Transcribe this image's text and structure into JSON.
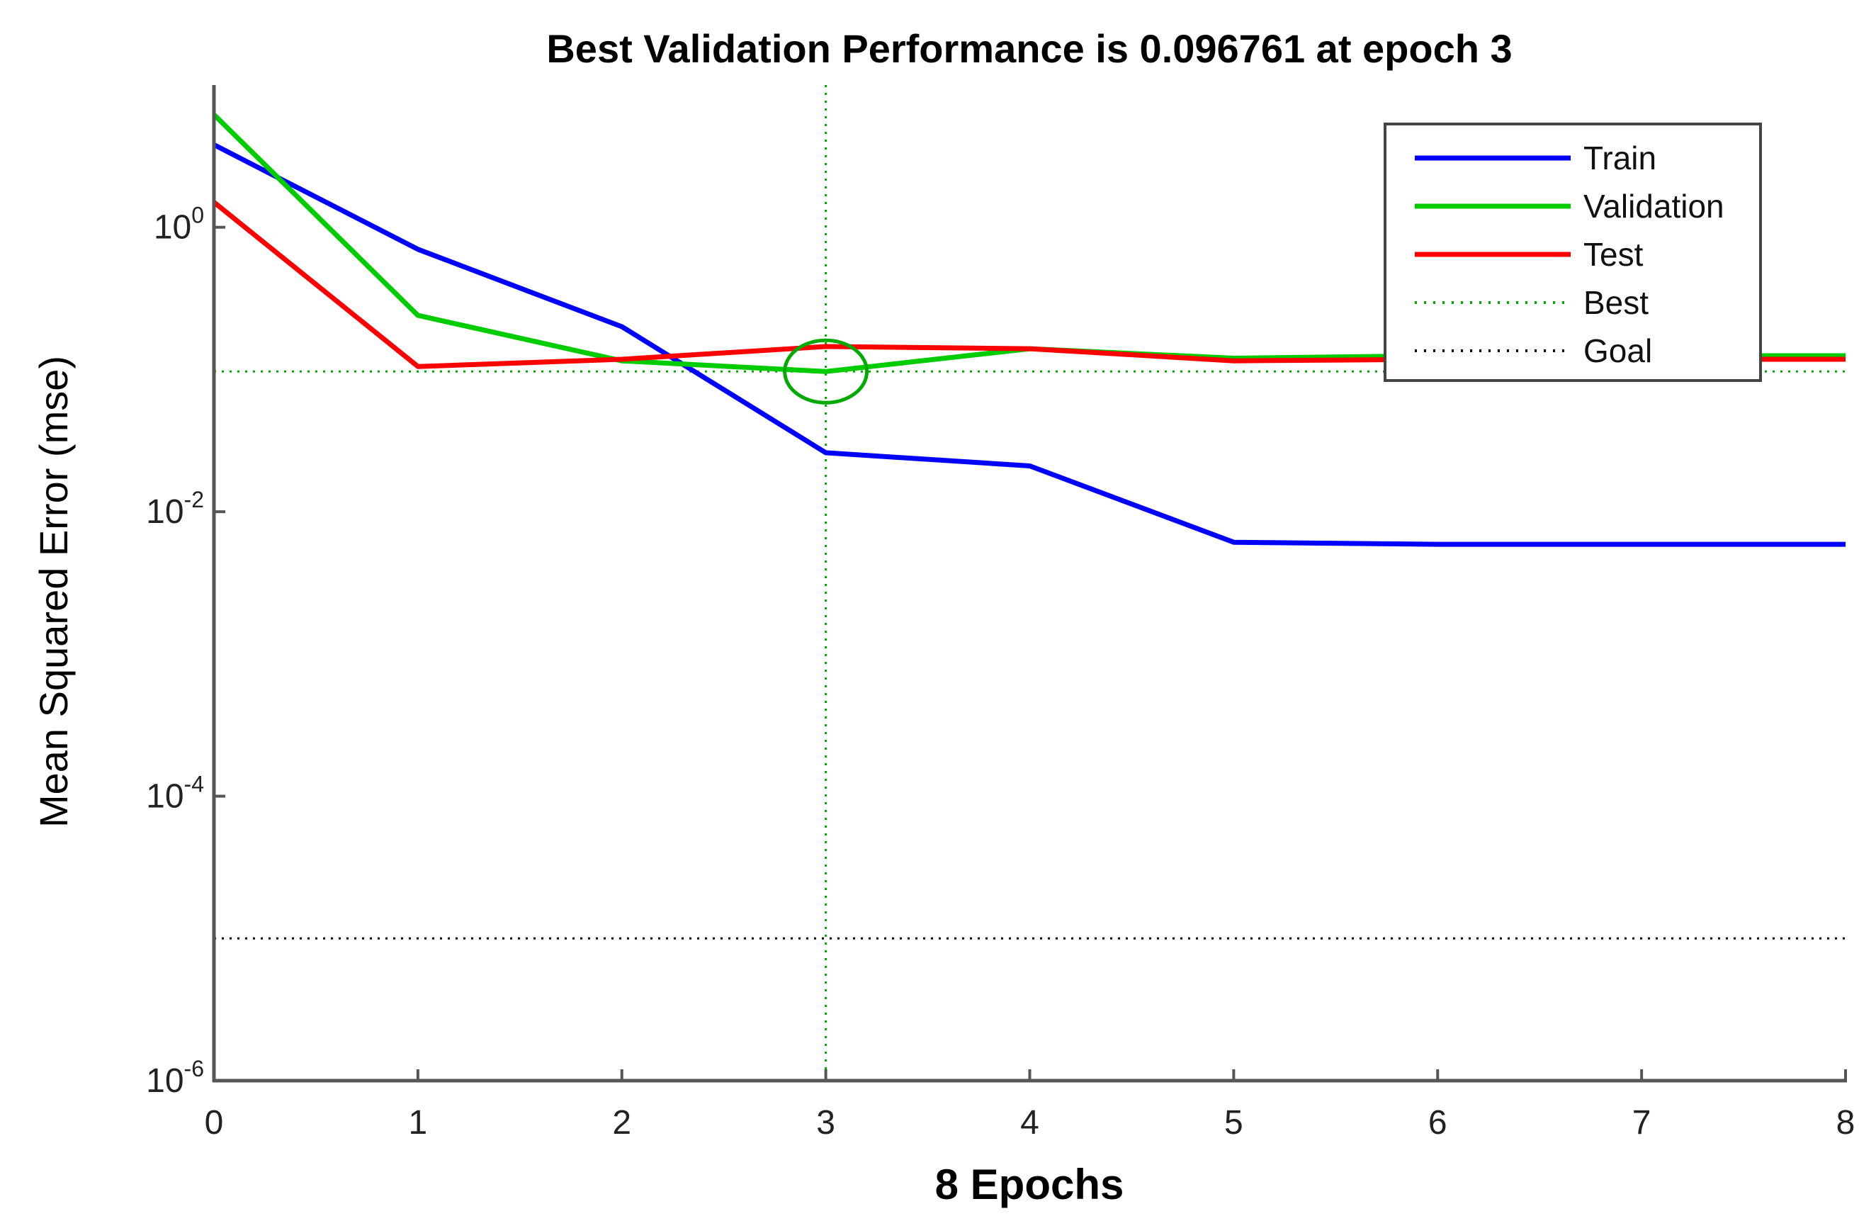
{
  "chart_data": {
    "type": "line",
    "title": "Best Validation Performance is 0.096761 at epoch 3",
    "xlabel": "8 Epochs",
    "ylabel": "Mean Squared Error  (mse)",
    "yscale": "log",
    "xlim": [
      0,
      8
    ],
    "ylim": [
      1e-06,
      10
    ],
    "xticks": [
      "0",
      "1",
      "2",
      "3",
      "4",
      "5",
      "6",
      "7",
      "8"
    ],
    "yticks": [
      {
        "value": 1,
        "base": "10",
        "exp": "0"
      },
      {
        "value": 0.01,
        "base": "10",
        "exp": "-2"
      },
      {
        "value": 0.0001,
        "base": "10",
        "exp": "-4"
      },
      {
        "value": 1e-06,
        "base": "10",
        "exp": "-6"
      }
    ],
    "x": [
      0,
      1,
      2,
      3,
      4,
      5,
      6,
      7,
      8
    ],
    "series": [
      {
        "name": "Train",
        "color": "#0000ff",
        "values": [
          3.8,
          0.7,
          0.2,
          0.026,
          0.021,
          0.0061,
          0.0059,
          0.0059,
          0.0059
        ]
      },
      {
        "name": "Validation",
        "color": "#00cc00",
        "values": [
          6.2,
          0.24,
          0.115,
          0.096761,
          0.14,
          0.12,
          0.125,
          0.125,
          0.125
        ]
      },
      {
        "name": "Test",
        "color": "#ff0000",
        "values": [
          1.5,
          0.105,
          0.118,
          0.145,
          0.14,
          0.115,
          0.118,
          0.118,
          0.118
        ]
      }
    ],
    "best": {
      "name": "Best",
      "color": "#00aa00",
      "epoch": 3,
      "value": 0.096761
    },
    "goal": {
      "name": "Goal",
      "color": "#000000",
      "value": 1e-05
    },
    "legend_position": "top-right"
  }
}
